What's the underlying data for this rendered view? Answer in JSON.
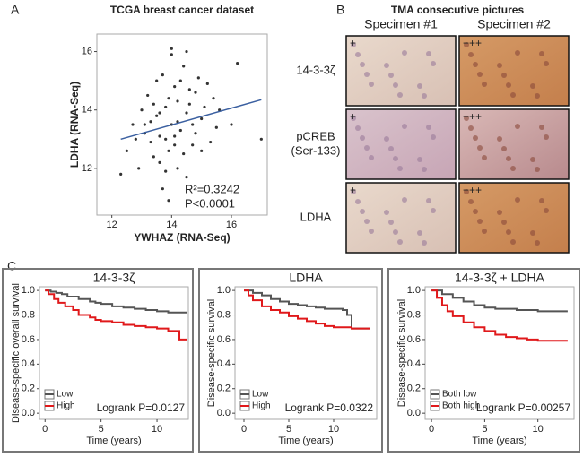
{
  "panel_labels": [
    "A",
    "B",
    "C"
  ],
  "tma": {
    "title": "TMA consecutive pictures",
    "columns": [
      "Specimen #1",
      "Specimen #2"
    ],
    "rows": [
      {
        "label": [
          "14-3-3ζ"
        ],
        "scores": [
          "+",
          "+++"
        ]
      },
      {
        "label": [
          "pCREB",
          "(Ser-133)"
        ],
        "scores": [
          "+",
          "+++"
        ]
      },
      {
        "label": [
          "LDHA"
        ],
        "scores": [
          "+",
          "+++"
        ]
      }
    ]
  },
  "chart_data": [
    {
      "type": "scatter",
      "title": "TCGA breast cancer dataset",
      "x_label": "YWHAZ (RNA-Seq)",
      "y_label": "LDHA (RNA-Seq)",
      "xlim": [
        11.5,
        17.2
      ],
      "ylim": [
        10.4,
        16.6
      ],
      "xticks": [
        12,
        14,
        16
      ],
      "yticks": [
        12,
        14,
        16
      ],
      "color": "#333333",
      "x": [
        13.1,
        13.5,
        13.8,
        14.0,
        14.2,
        14.5,
        14.8,
        13.3,
        13.6,
        13.9,
        14.1,
        14.3,
        14.6,
        15.0,
        12.8,
        13.0,
        13.4,
        13.7,
        14.4,
        14.7,
        15.2,
        15.5,
        12.5,
        13.2,
        13.8,
        14.0,
        14.9,
        15.3,
        13.6,
        14.2,
        13.9,
        14.1,
        13.5,
        14.6,
        15.1,
        12.9,
        13.3,
        14.4,
        14.8,
        15.6,
        12.3,
        16.2,
        17.0,
        13.7,
        14.0,
        14.3,
        13.1,
        13.8,
        14.5,
        15.0,
        13.4,
        14.2,
        14.7,
        13.6,
        14.1,
        13.9,
        15.4,
        12.7,
        16.0,
        14.5
      ],
      "values": [
        13.2,
        13.8,
        14.1,
        13.5,
        14.3,
        13.9,
        14.6,
        12.9,
        13.1,
        12.6,
        14.8,
        13.3,
        14.2,
        13.7,
        13.0,
        14.0,
        12.4,
        15.2,
        15.5,
        12.8,
        14.9,
        13.4,
        12.6,
        14.5,
        13.0,
        15.9,
        15.1,
        12.9,
        12.2,
        13.6,
        14.4,
        12.8,
        15.0,
        14.7,
        14.1,
        12.0,
        13.6,
        12.5,
        13.2,
        14.0,
        11.8,
        15.6,
        13.0,
        11.3,
        16.1,
        15.0,
        13.5,
        11.9,
        16.0,
        12.6,
        14.2,
        12.0,
        13.5,
        13.9,
        13.1,
        10.9,
        14.4,
        13.5,
        13.5,
        11.7
      ],
      "trendline": {
        "color": "#3a5fa0",
        "x": [
          12.3,
          17.0
        ],
        "values": [
          13.0,
          14.35
        ]
      },
      "annotations": [
        "R²=0.3242",
        "P<0.0001"
      ]
    },
    {
      "type": "line",
      "title": "14-3-3ζ",
      "x_label": "Time (years)",
      "y_label": "Disease-specific overall survival",
      "xlim": [
        -0.5,
        12.8
      ],
      "ylim": [
        -0.05,
        1.03
      ],
      "xticks": [
        0,
        5,
        10
      ],
      "yticks": [
        {
          "value": 0,
          "label": "0.0"
        },
        0.2,
        0.4,
        0.6,
        0.8,
        {
          "value": 1,
          "label": "1.0"
        }
      ],
      "annotation": "Logrank P=0.0127",
      "series": [
        {
          "name": "Low",
          "color": "#555555",
          "x": [
            0,
            0.5,
            1,
            1.5,
            2,
            3,
            4,
            4.5,
            5,
            6,
            7,
            8,
            9,
            10,
            11,
            12.7
          ],
          "values": [
            1,
            0.99,
            0.98,
            0.97,
            0.95,
            0.93,
            0.91,
            0.9,
            0.89,
            0.87,
            0.86,
            0.85,
            0.84,
            0.83,
            0.82,
            0.82
          ]
        },
        {
          "name": "High",
          "color": "#e0191b",
          "x": [
            0,
            0.3,
            0.8,
            1.2,
            1.8,
            2.5,
            3,
            4,
            4.5,
            5,
            6,
            7,
            8,
            9,
            10,
            11,
            12,
            12.7
          ],
          "values": [
            1,
            0.97,
            0.93,
            0.9,
            0.87,
            0.84,
            0.8,
            0.78,
            0.76,
            0.75,
            0.74,
            0.72,
            0.71,
            0.7,
            0.69,
            0.67,
            0.6,
            0.6
          ]
        }
      ]
    },
    {
      "type": "line",
      "title": "LDHA",
      "x_label": "Time (years)",
      "y_label": "Disease-specific survival",
      "xlim": [
        -1,
        14.8
      ],
      "ylim": [
        -0.05,
        1.03
      ],
      "xticks": [
        0,
        5,
        10
      ],
      "yticks": [
        {
          "value": 0,
          "label": "0.0"
        },
        0.2,
        0.4,
        0.6,
        0.8,
        {
          "value": 1,
          "label": "1.0"
        }
      ],
      "annotation": "Logrank P=0.0322",
      "series": [
        {
          "name": "Low",
          "color": "#555555",
          "x": [
            0,
            1,
            2,
            3,
            4,
            5,
            6,
            7,
            8,
            9,
            10,
            11,
            11.5,
            12,
            14
          ],
          "values": [
            1,
            0.98,
            0.96,
            0.93,
            0.91,
            0.89,
            0.88,
            0.87,
            0.86,
            0.85,
            0.85,
            0.84,
            0.8,
            0.69,
            0.69
          ]
        },
        {
          "name": "High",
          "color": "#e0191b",
          "x": [
            0,
            0.5,
            1,
            2,
            3,
            4,
            5,
            6,
            7,
            8,
            9,
            10,
            12,
            14
          ],
          "values": [
            1,
            0.96,
            0.92,
            0.87,
            0.84,
            0.82,
            0.79,
            0.77,
            0.75,
            0.73,
            0.71,
            0.7,
            0.69,
            0.69
          ]
        }
      ]
    },
    {
      "type": "line",
      "title": "14-3-3ζ + LDHA",
      "x_label": "Time (years)",
      "y_label": "Disease-specific survival",
      "xlim": [
        -0.6,
        13.4
      ],
      "ylim": [
        -0.05,
        1.03
      ],
      "xticks": [
        0,
        5,
        10
      ],
      "yticks": [
        {
          "value": 0,
          "label": "0.0"
        },
        0.2,
        0.4,
        0.6,
        0.8,
        {
          "value": 1,
          "label": "1.0"
        }
      ],
      "annotation": "Logrank P=0.00257",
      "series": [
        {
          "name": "Both low",
          "color": "#555555",
          "x": [
            0,
            1,
            2,
            3,
            4,
            5,
            6,
            8,
            10,
            12.8
          ],
          "values": [
            1,
            0.97,
            0.94,
            0.91,
            0.88,
            0.86,
            0.85,
            0.84,
            0.83,
            0.83
          ]
        },
        {
          "name": "Both high",
          "color": "#e0191b",
          "x": [
            0,
            0.5,
            1,
            1.5,
            2,
            3,
            4,
            5,
            6,
            7,
            8,
            9,
            10,
            12.8
          ],
          "values": [
            1,
            0.94,
            0.88,
            0.83,
            0.79,
            0.74,
            0.7,
            0.67,
            0.64,
            0.62,
            0.61,
            0.6,
            0.59,
            0.59
          ]
        }
      ]
    }
  ]
}
